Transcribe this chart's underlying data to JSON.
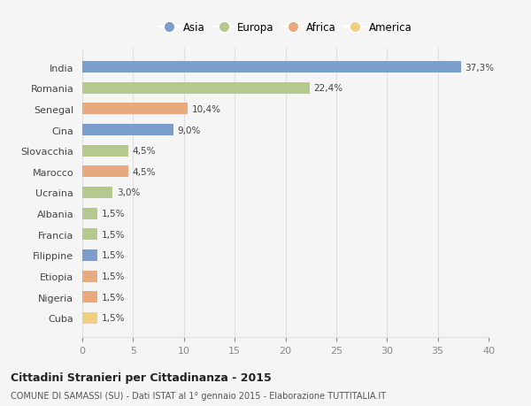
{
  "categories": [
    "India",
    "Romania",
    "Senegal",
    "Cina",
    "Slovacchia",
    "Marocco",
    "Ucraina",
    "Albania",
    "Francia",
    "Filippine",
    "Etiopia",
    "Nigeria",
    "Cuba"
  ],
  "values": [
    37.3,
    22.4,
    10.4,
    9.0,
    4.5,
    4.5,
    3.0,
    1.5,
    1.5,
    1.5,
    1.5,
    1.5,
    1.5
  ],
  "labels": [
    "37,3%",
    "22,4%",
    "10,4%",
    "9,0%",
    "4,5%",
    "4,5%",
    "3,0%",
    "1,5%",
    "1,5%",
    "1,5%",
    "1,5%",
    "1,5%",
    "1,5%"
  ],
  "colors": [
    "#7b9dc9",
    "#b5c98e",
    "#e8a97e",
    "#7b9dc9",
    "#b5c98e",
    "#e8a97e",
    "#b5c98e",
    "#b5c98e",
    "#b5c98e",
    "#7b9dc9",
    "#e8a97e",
    "#e8a97e",
    "#f0d080"
  ],
  "legend_labels": [
    "Asia",
    "Europa",
    "Africa",
    "America"
  ],
  "legend_colors": [
    "#7b9dc9",
    "#b5c98e",
    "#e8a97e",
    "#f0d080"
  ],
  "title": "Cittadini Stranieri per Cittadinanza - 2015",
  "subtitle": "COMUNE DI SAMASSI (SU) - Dati ISTAT al 1° gennaio 2015 - Elaborazione TUTTITALIA.IT",
  "xlim": [
    0,
    40
  ],
  "xticks": [
    0,
    5,
    10,
    15,
    20,
    25,
    30,
    35,
    40
  ],
  "bg_color": "#f5f5f5",
  "grid_color": "#e0e0e0"
}
